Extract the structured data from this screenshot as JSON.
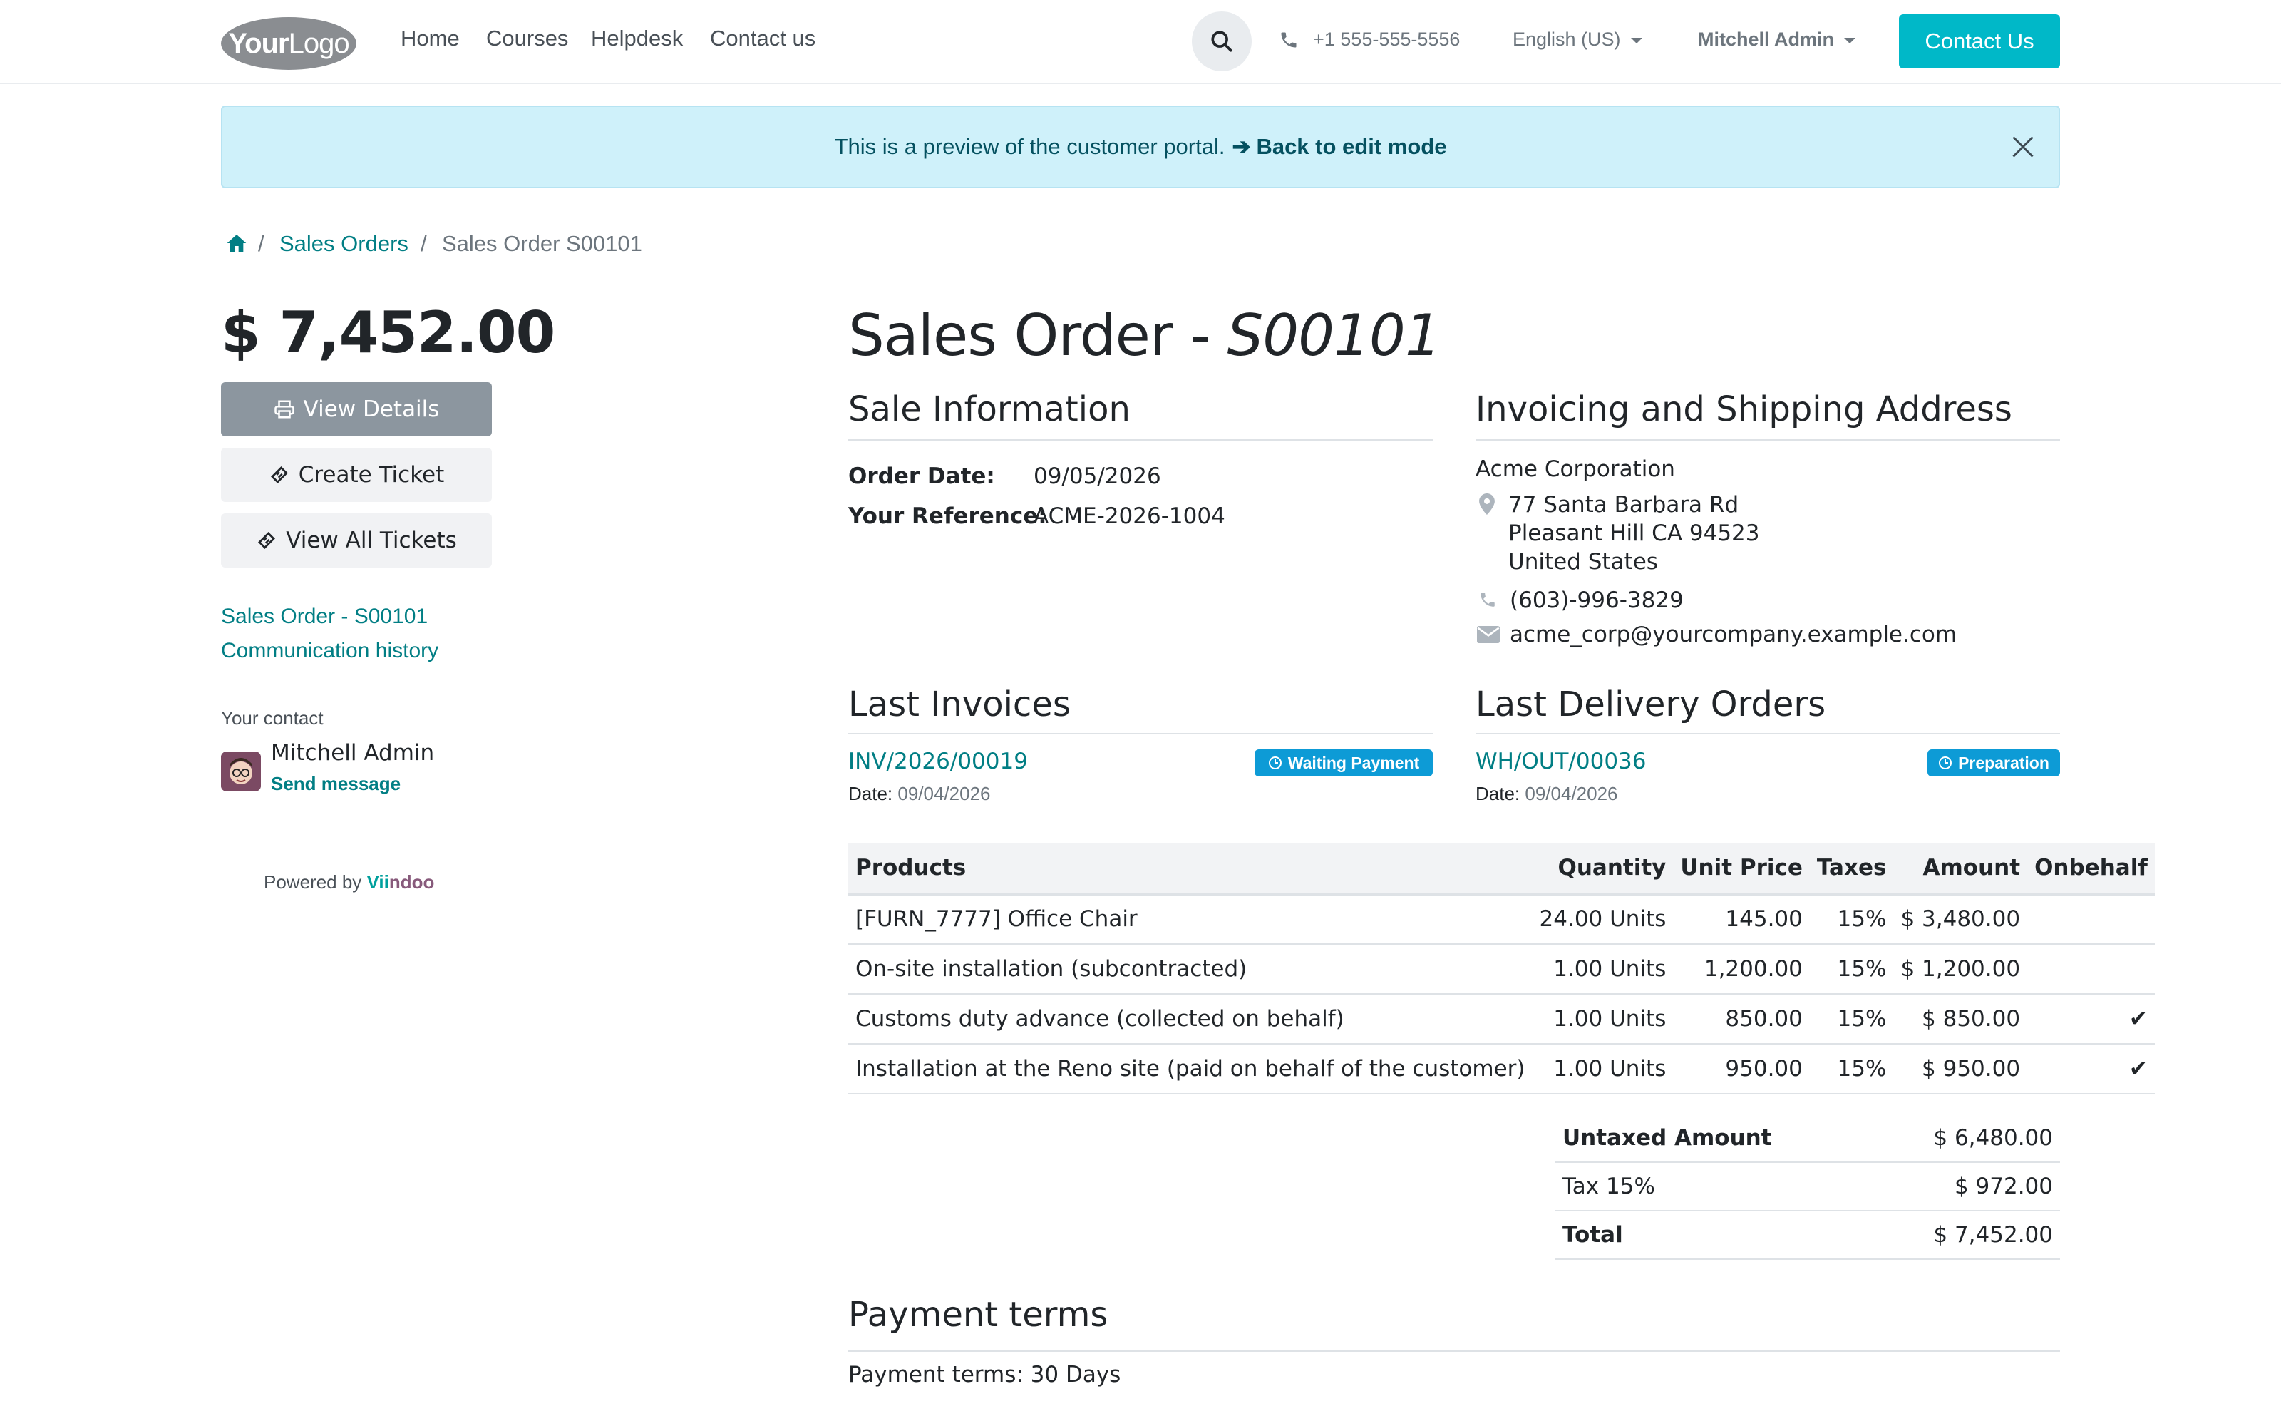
{
  "header": {
    "logo_text_bold": "Your",
    "logo_text_light": "Logo",
    "nav": [
      "Home",
      "Courses",
      "Helpdesk",
      "Contact us"
    ],
    "phone": "+1 555-555-5556",
    "language": "English (US)",
    "user": "Mitchell Admin",
    "contact_button": "Contact Us",
    "accent_color": "#00b8c8"
  },
  "alert": {
    "text": "This is a preview of the customer portal.",
    "link": "Back to edit mode"
  },
  "breadcrumb": {
    "items": [
      "Sales Orders",
      "Sales Order S00101"
    ]
  },
  "sidebar": {
    "amount": "$ 7,452.00",
    "view_details": "View Details",
    "create_ticket": "Create Ticket",
    "view_all_tickets": "View All Tickets",
    "link_order": "Sales Order - S00101",
    "link_history": "Communication history",
    "your_contact_label": "Your contact",
    "contact_name": "Mitchell Admin",
    "send_message": "Send message",
    "powered_by": "Powered by",
    "brand_a": "Vii",
    "brand_b": "ndoo"
  },
  "order": {
    "title_prefix": "Sales Order - ",
    "title_number": "S00101",
    "sale_info_heading": "Sale Information",
    "order_date_label": "Order Date:",
    "order_date": "09/05/2026",
    "reference_label": "Your Reference:",
    "reference": "ACME-2026-1004",
    "address_heading": "Invoicing and Shipping Address",
    "company": "Acme Corporation",
    "street": "77 Santa Barbara Rd",
    "city": "Pleasant Hill CA 94523",
    "country": "United States",
    "phone": "(603)-996-3829",
    "email": "acme_corp@yourcompany.example.com"
  },
  "invoices": {
    "heading": "Last Invoices",
    "number": "INV/2026/00019",
    "status": "Waiting Payment",
    "date_label": "Date:",
    "date": "09/04/2026"
  },
  "deliveries": {
    "heading": "Last Delivery Orders",
    "number": "WH/OUT/00036",
    "status": "Preparation",
    "date_label": "Date:",
    "date": "09/04/2026"
  },
  "products": {
    "headers": [
      "Products",
      "Quantity",
      "Unit Price",
      "Taxes",
      "Amount",
      "Onbehalf"
    ],
    "rows": [
      {
        "name": "[FURN_7777] Office Chair",
        "qty": "24.00 Units",
        "price": "145.00",
        "tax": "15%",
        "amount": "$ 3,480.00",
        "onbehalf": ""
      },
      {
        "name": "On-site installation (subcontracted)",
        "qty": "1.00 Units",
        "price": "1,200.00",
        "tax": "15%",
        "amount": "$ 1,200.00",
        "onbehalf": ""
      },
      {
        "name": "Customs duty advance (collected on behalf)",
        "qty": "1.00 Units",
        "price": "850.00",
        "tax": "15%",
        "amount": "$ 850.00",
        "onbehalf": "✔"
      },
      {
        "name": "Installation at the Reno site (paid on behalf of the customer)",
        "qty": "1.00 Units",
        "price": "950.00",
        "tax": "15%",
        "amount": "$ 950.00",
        "onbehalf": "✔"
      }
    ]
  },
  "totals": {
    "untaxed_label": "Untaxed Amount",
    "untaxed": "$ 6,480.00",
    "tax_label": "Tax 15%",
    "tax": "$ 972.00",
    "total_label": "Total",
    "total": "$ 7,452.00"
  },
  "payment": {
    "heading": "Payment terms",
    "text": "Payment terms: 30 Days"
  }
}
